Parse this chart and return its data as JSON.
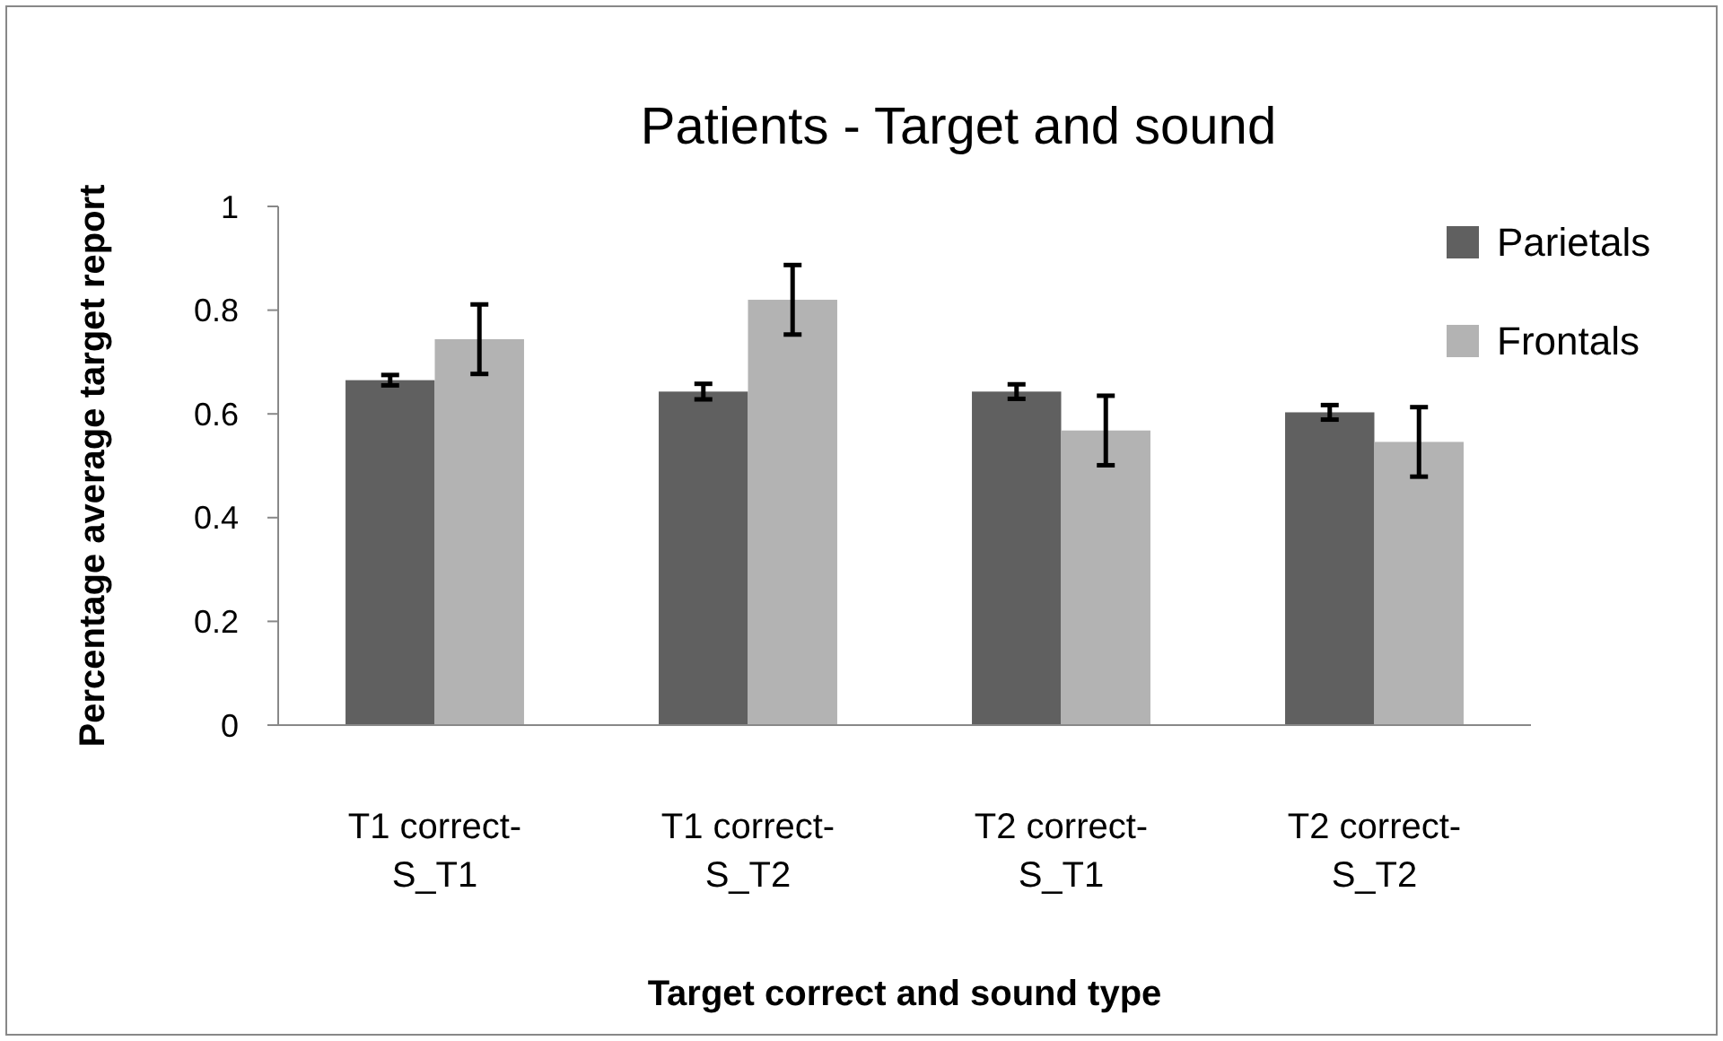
{
  "chart_data": {
    "type": "bar",
    "title": "Patients - Target and sound",
    "xlabel": "Target correct and sound type",
    "ylabel": "Percentage average target report",
    "categories": [
      "T1 correct-S_T1",
      "T1 correct-S_T2",
      "T2 correct-S_T1",
      "T2 correct-S_T2"
    ],
    "series": [
      {
        "name": "Parietals",
        "color": "#606060",
        "values": [
          0.665,
          0.643,
          0.643,
          0.603
        ],
        "errors": [
          0.01,
          0.015,
          0.014,
          0.014
        ]
      },
      {
        "name": "Frontals",
        "color": "#b3b3b3",
        "values": [
          0.744,
          0.82,
          0.568,
          0.546
        ],
        "errors": [
          0.067,
          0.067,
          0.067,
          0.067
        ]
      }
    ],
    "ylim": [
      0,
      1
    ],
    "yticks": [
      0,
      0.2,
      0.4,
      0.6,
      0.8,
      1
    ],
    "grid": false,
    "legend": "top right"
  }
}
